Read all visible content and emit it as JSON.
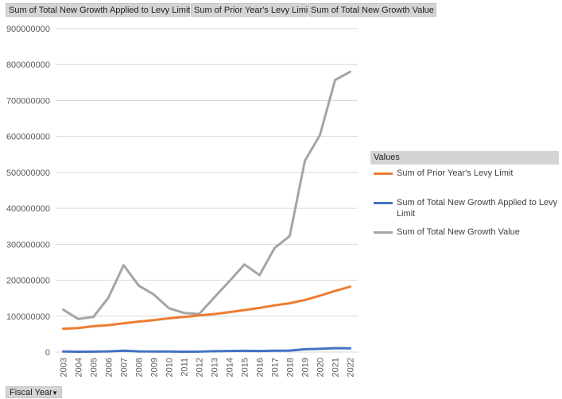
{
  "field_buttons": {
    "series_a": "Sum of Total New Growth Applied to Levy Limit",
    "series_b": "Sum of Prior Year's Levy Limit",
    "series_c": "Sum of Total New Growth Value"
  },
  "legend": {
    "header": "Values",
    "items": [
      {
        "label": "Sum of Prior Year's Levy Limit",
        "color": "#ed7d31"
      },
      {
        "label": "Sum of Total New Growth Applied to Levy Limit",
        "color": "#4472c4"
      },
      {
        "label": "Sum of Total New Growth Value",
        "color": "#a5a5a5"
      }
    ]
  },
  "axis_field_button": {
    "label": "Fiscal Year",
    "icon": "dropdown-arrow-icon"
  },
  "chart_data": {
    "type": "line",
    "x": [
      2003,
      2004,
      2005,
      2006,
      2007,
      2008,
      2009,
      2010,
      2011,
      2012,
      2013,
      2014,
      2015,
      2016,
      2017,
      2018,
      2019,
      2020,
      2021,
      2022
    ],
    "ylim": [
      0,
      900000000
    ],
    "yticks": [
      0,
      100000000,
      200000000,
      300000000,
      400000000,
      500000000,
      600000000,
      700000000,
      800000000,
      900000000
    ],
    "grid": true,
    "legend_position": "right",
    "series": [
      {
        "name": "Sum of Total New Growth Value",
        "color": "#a5a5a5",
        "values": [
          118000000,
          92000000,
          98000000,
          152000000,
          242000000,
          185000000,
          160000000,
          122000000,
          109000000,
          106000000,
          152000000,
          197000000,
          244000000,
          214000000,
          290000000,
          323000000,
          532000000,
          604000000,
          757000000,
          780000000
        ]
      },
      {
        "name": "Sum of Prior Year's Levy Limit",
        "color": "#ed7d31",
        "values": [
          65000000,
          67000000,
          72000000,
          75000000,
          80000000,
          85000000,
          89000000,
          94000000,
          98000000,
          102000000,
          106000000,
          111000000,
          117000000,
          123000000,
          130000000,
          136000000,
          145000000,
          157000000,
          170000000,
          182000000
        ]
      },
      {
        "name": "Sum of Total New Growth Applied to Levy Limit",
        "color": "#4472c4",
        "values": [
          1500000,
          1200000,
          1300000,
          2000000,
          4000000,
          2000000,
          1800000,
          1500000,
          1200000,
          1300000,
          2500000,
          3000000,
          3500000,
          3000000,
          4000000,
          4200000,
          8000000,
          9000000,
          11000000,
          10500000
        ]
      }
    ]
  }
}
